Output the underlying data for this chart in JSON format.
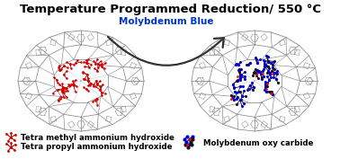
{
  "title": "Temperature Programmed Reduction/ 550 °C",
  "title_fontsize": 9.5,
  "title_fontweight": "bold",
  "arrow_label": "Molybdenum Blue",
  "arrow_label_color": "#0033CC",
  "legend_left_line1": "Tetra methyl ammonium hydroxide",
  "legend_left_line2": "Tetra propyl ammonium hydroxide",
  "legend_right": "Molybdenum oxy carbide",
  "legend_fontsize": 6.2,
  "legend_fontweight": "bold",
  "background_color": "#ffffff",
  "zeolite_color": "#888888",
  "red_molecule_color": "#CC0000",
  "blue_molecule_color": "#0000CC",
  "black_molecule_color": "#111111",
  "fig_width": 3.78,
  "fig_height": 1.77,
  "dpi": 100
}
